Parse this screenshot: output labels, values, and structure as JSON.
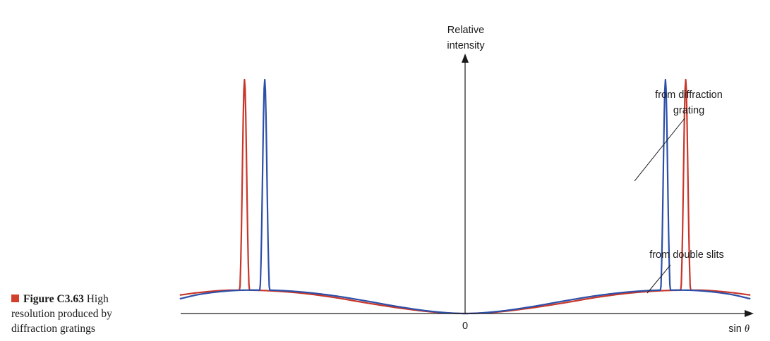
{
  "caption": {
    "figure_label": "Figure C3.63",
    "text": " High resolution produced by diffraction gratings",
    "marker_color": "#d0402c"
  },
  "chart_data": {
    "type": "line",
    "title": "",
    "xlabel": "sin θ",
    "ylabel_lines": [
      "Relative",
      "intensity"
    ],
    "x_tick_labels": [
      "0"
    ],
    "xlim": [
      -1.0,
      1.0
    ],
    "ylim": [
      0,
      1.0
    ],
    "grid": false,
    "series": [
      {
        "color": "#c8362a",
        "double_slit_envelope": {
          "x": [
            -0.86,
            -0.8,
            -0.7,
            -0.6,
            -0.5,
            -0.4,
            -0.3,
            -0.2,
            -0.1,
            0.0,
            0.1,
            0.2,
            0.3,
            0.4,
            0.5,
            0.6,
            0.7,
            0.8,
            0.86
          ],
          "y": [
            0.079,
            0.09,
            0.1,
            0.098,
            0.088,
            0.07,
            0.046,
            0.024,
            0.007,
            0.0,
            0.007,
            0.024,
            0.046,
            0.07,
            0.088,
            0.098,
            0.1,
            0.09,
            0.079
          ]
        },
        "grating_peaks": [
          {
            "x": -0.665,
            "y": 1.0
          },
          {
            "x": 0.665,
            "y": 1.0
          }
        ]
      },
      {
        "color": "#2c4fa8",
        "double_slit_envelope": {
          "x": [
            -0.86,
            -0.8,
            -0.7,
            -0.6,
            -0.5,
            -0.4,
            -0.3,
            -0.2,
            -0.1,
            0.0,
            0.1,
            0.2,
            0.3,
            0.4,
            0.5,
            0.6,
            0.7,
            0.8,
            0.86
          ],
          "y": [
            0.063,
            0.082,
            0.098,
            0.1,
            0.093,
            0.077,
            0.054,
            0.029,
            0.009,
            0.0,
            0.009,
            0.029,
            0.054,
            0.077,
            0.093,
            0.1,
            0.098,
            0.082,
            0.063
          ]
        },
        "grating_peaks": [
          {
            "x": -0.604,
            "y": 1.0
          },
          {
            "x": 0.604,
            "y": 1.0
          }
        ]
      }
    ],
    "annotations": [
      {
        "lines": [
          "from diffraction",
          "grating"
        ],
        "points_to": "grating_peaks"
      },
      {
        "lines": [
          "from double slits"
        ],
        "points_to": "double_slit_envelope"
      }
    ]
  }
}
